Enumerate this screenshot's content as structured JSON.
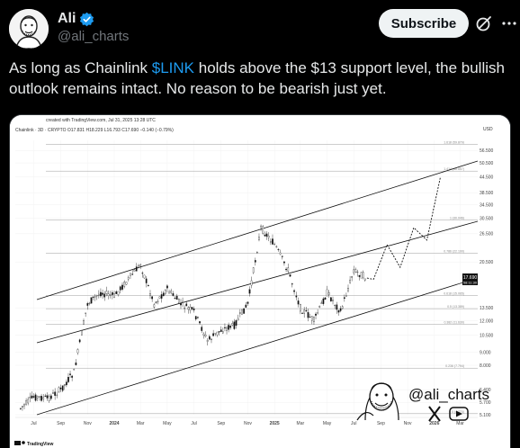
{
  "post": {
    "display_name": "Ali",
    "handle": "@ali_charts",
    "subscribe_label": "Subscribe",
    "text_before": "As long as Chainlink ",
    "cashtag": "$LINK",
    "text_after": " holds above the $13 support level, the bullish outlook remains intact. No reason to be bearish just yet."
  },
  "icons": {
    "verified": "verified-badge-icon",
    "grok": "grok-icon",
    "more": "more-icon"
  },
  "colors": {
    "accent": "#1d9bf0",
    "price_line": "#000000",
    "channel_line": "#000000",
    "fib_line": "#9e9e9e"
  },
  "chart_data": {
    "type": "line",
    "header": "created with TradingView.com, Jul 31, 2025 13:28 UTC",
    "ticker_info": "Chainlink · 3D · CRYPTO  O17.831  H18.229  L16.793  C17.690  −0.140 (−0.79%)",
    "currency": "USD",
    "y_scale": "log",
    "y_ticks": [
      "56.500",
      "50.500",
      "44.500",
      "38.500",
      "34.500",
      "30.500",
      "26.500",
      "20.500",
      "17.690",
      "13.500",
      "12.000",
      "10.500",
      "9.000",
      "8.000",
      "6.400",
      "5.700",
      "5.100"
    ],
    "x_ticks": [
      "Jul",
      "Sep",
      "Nov",
      "2024",
      "Mar",
      "May",
      "Jul",
      "Sep",
      "Nov",
      "2025",
      "Mar",
      "May",
      "Jul",
      "Sep",
      "Nov",
      "2026",
      "Mar"
    ],
    "current_price": "17.690",
    "current_price_sub": "58:11:30",
    "fib_levels": [
      {
        "label": "1.618 (59.879)"
      },
      {
        "label": "1.414 (46.857)"
      },
      {
        "label": "1 (30.046)"
      },
      {
        "label": "0.786 (22.190)"
      },
      {
        "label": "0.618 (15.065)"
      },
      {
        "label": "0.5 (13.389)"
      },
      {
        "label": "0.382 (11.630)"
      },
      {
        "label": "0.236 (7.794)"
      },
      {
        "label": "0 (4.770)"
      }
    ],
    "price_path": [
      [
        "2023-06",
        5.4
      ],
      [
        "2023-07",
        6.0
      ],
      [
        "2023-08",
        5.9
      ],
      [
        "2023-09",
        6.4
      ],
      [
        "2023-10",
        7.5
      ],
      [
        "2023-11",
        14.0
      ],
      [
        "2023-12",
        15.5
      ],
      [
        "2024-01",
        15.0
      ],
      [
        "2024-03",
        20.0
      ],
      [
        "2024-04",
        14.0
      ],
      [
        "2024-05",
        16.0
      ],
      [
        "2024-06",
        14.0
      ],
      [
        "2024-07",
        13.0
      ],
      [
        "2024-08",
        10.0
      ],
      [
        "2024-09",
        11.0
      ],
      [
        "2024-10",
        11.5
      ],
      [
        "2024-11",
        14.0
      ],
      [
        "2024-12",
        28.0
      ],
      [
        "2025-01",
        24.0
      ],
      [
        "2025-02",
        19.0
      ],
      [
        "2025-03",
        13.5
      ],
      [
        "2025-04",
        12.0
      ],
      [
        "2025-05",
        15.5
      ],
      [
        "2025-06",
        13.0
      ],
      [
        "2025-07",
        19.0
      ],
      [
        "2025-07-31",
        17.69
      ]
    ],
    "projection_path": [
      [
        "2025-08",
        17.5
      ],
      [
        "2025-09",
        24.0
      ],
      [
        "2025-10",
        19.5
      ],
      [
        "2025-11",
        28.0
      ],
      [
        "2025-12",
        25.0
      ],
      [
        "2026-01",
        44.5
      ]
    ],
    "watermark": "@ali_charts",
    "footer": "TradingView"
  }
}
